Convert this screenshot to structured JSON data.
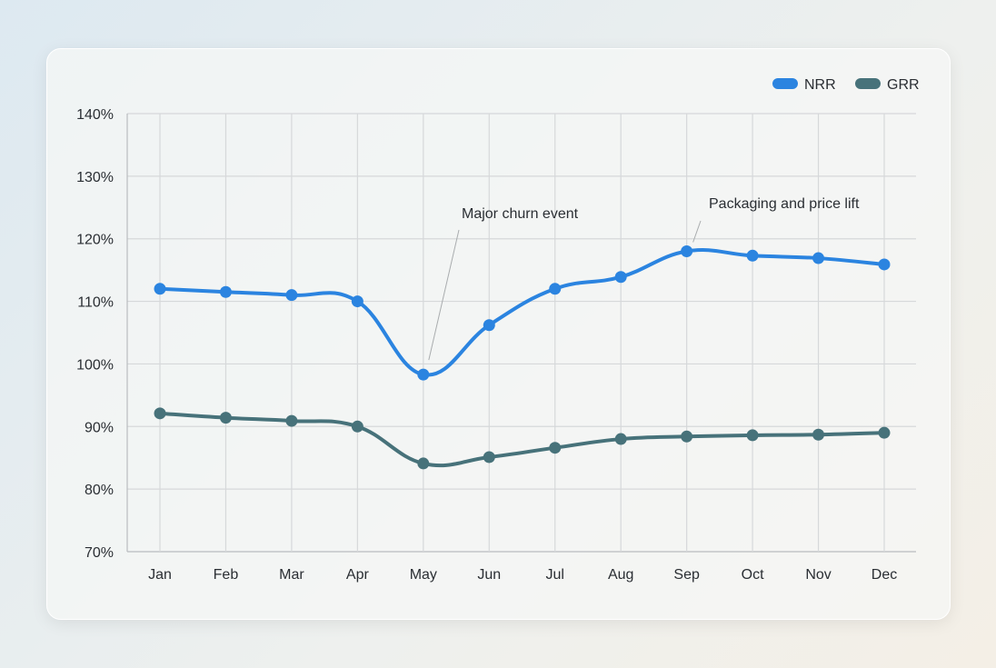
{
  "chart_data": {
    "type": "line",
    "categories": [
      "Jan",
      "Feb",
      "Mar",
      "Apr",
      "May",
      "Jun",
      "Jul",
      "Aug",
      "Sep",
      "Oct",
      "Nov",
      "Dec"
    ],
    "series": [
      {
        "name": "NRR",
        "color": "#2b84e0",
        "values": [
          112,
          111.5,
          111,
          110,
          98.3,
          106.2,
          112,
          113.9,
          118,
          117.3,
          116.9,
          115.9
        ]
      },
      {
        "name": "GRR",
        "color": "#47727a",
        "values": [
          92.1,
          91.4,
          90.9,
          90,
          84.1,
          85.1,
          86.6,
          88,
          88.4,
          88.6,
          88.7,
          89
        ]
      }
    ],
    "ylim": [
      70,
      140
    ],
    "yticks": [
      70,
      80,
      90,
      100,
      110,
      120,
      130,
      140
    ],
    "ytick_format": "%",
    "grid": true,
    "legend": "top-right",
    "annotations": [
      {
        "text": "Major churn event",
        "series": "NRR",
        "category": "May"
      },
      {
        "text": "Packaging and price lift",
        "series": "NRR",
        "category": "Sep"
      }
    ]
  }
}
